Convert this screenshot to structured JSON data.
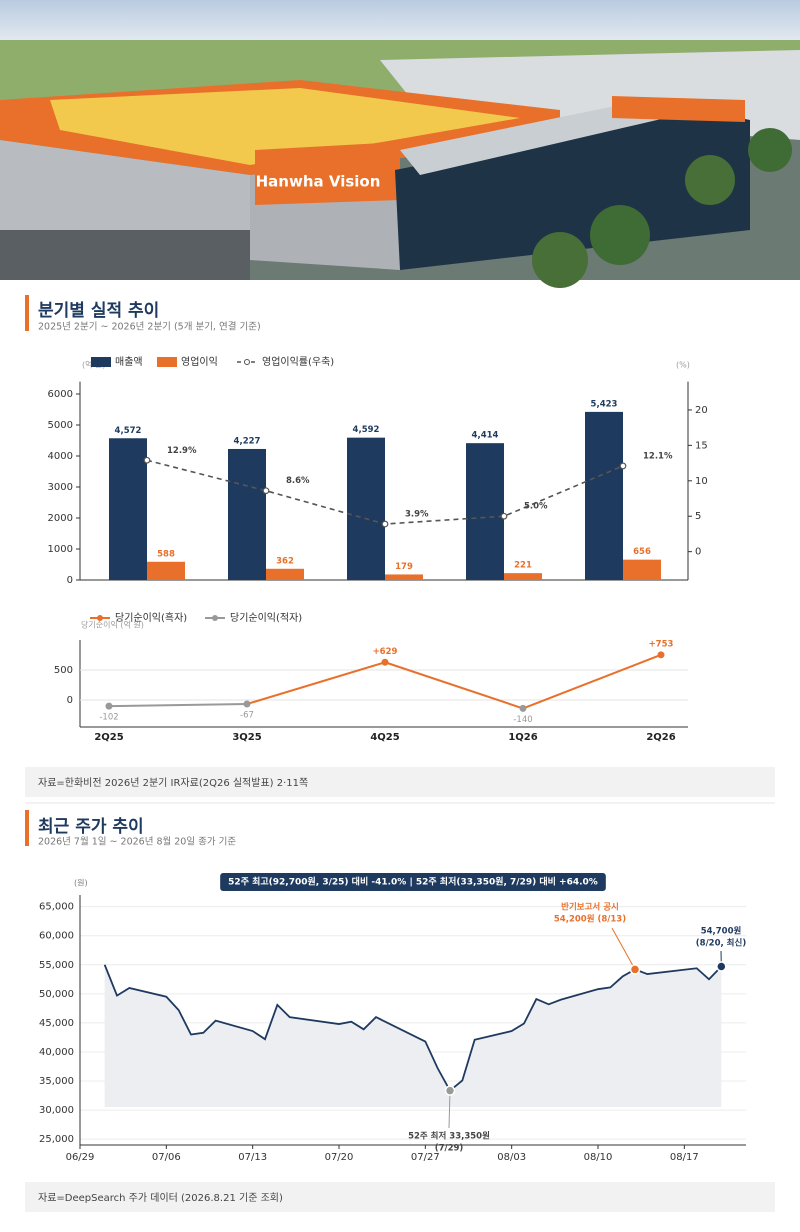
{
  "photo": {
    "sign": "Hanwha Vision"
  },
  "sections": [
    {
      "title": "분기별 실적 추이",
      "subtitle": "2025년 2분기 ~ 2026년 2분기 (5개 분기, 연결 기준)",
      "source": "자료=한화비전 2026년 2분기 IR자료(2Q26 실적발표) 2·11쪽"
    },
    {
      "title": "최근 주가 추이",
      "subtitle": "2026년 7월 1일 ~ 2026년 8월 20일 종가 기준",
      "source": "자료=DeepSearch 주가 데이터 (2026.8.21 기준 조회)"
    }
  ],
  "chart_data": [
    {
      "type": "bar",
      "y_label": "(억 원)",
      "y2_label": "(%)",
      "ylim": [
        0,
        6400
      ],
      "yticks": [
        0,
        1000,
        2000,
        3000,
        4000,
        5000,
        6000
      ],
      "y2lim": [
        -4,
        24
      ],
      "y2ticks": [
        0,
        5,
        10,
        15,
        20
      ],
      "series": [
        {
          "name": "매출액",
          "color": "#1f3a5f",
          "values": [
            4572,
            4227,
            4592,
            4414,
            5423
          ],
          "value_labels": [
            "4,572",
            "4,227",
            "4,592",
            "4,414",
            "5,423"
          ]
        },
        {
          "name": "영업이익",
          "color": "#e8702a",
          "values": [
            588,
            362,
            179,
            221,
            656
          ]
        },
        {
          "name": "영업이익률(우축)",
          "type": "line",
          "axis": "y2",
          "color": "#555555",
          "values": [
            12.9,
            8.6,
            3.9,
            5.0,
            12.1
          ],
          "value_labels": [
            "12.9%",
            "8.6%",
            "3.9%",
            "5.0%",
            "12.1%"
          ]
        }
      ]
    },
    {
      "type": "line",
      "y_label": "당기순이익 (억 원)",
      "categories": [
        "2Q25",
        "3Q25",
        "4Q25",
        "1Q26",
        "2Q26"
      ],
      "ylim": [
        -450,
        1000
      ],
      "yticks": [
        0,
        500
      ],
      "grid": true,
      "series": [
        {
          "name": "당기순이익(흑자)",
          "color": "#e8702a",
          "values": [
            null,
            null,
            629,
            null,
            753
          ],
          "value_labels": [
            null,
            null,
            "+629",
            null,
            "+753"
          ]
        },
        {
          "name": "당기순이익(적자)",
          "color": "#999999",
          "values": [
            -102,
            -67,
            null,
            -140,
            null
          ]
        }
      ]
    },
    {
      "type": "line",
      "y_label": "(원)",
      "color": "#1f3a5f",
      "grid": true,
      "banner": "52주 최고(92,700원, 3/25) 대비 -41.0%  |  52주 최저(33,350원, 7/29) 대비 +64.0%",
      "annotations": [
        {
          "lines": [
            "반기보고서 공시",
            "54,200원 (8/13)"
          ]
        },
        {
          "lines": [
            "54,700원",
            "(8/20, 최신)"
          ]
        },
        {
          "lines": [
            "52주 최저 33,350원",
            "(7/29)"
          ]
        }
      ],
      "xlim": [
        "06/29",
        "08/22"
      ],
      "xticks": [
        "06/29",
        "07/06",
        "07/13",
        "07/20",
        "07/27",
        "08/03",
        "08/10",
        "08/17"
      ],
      "ylim": [
        24000,
        67000
      ],
      "yticks": [
        {
          "value": 25000,
          "label": "25,000"
        },
        {
          "value": 30000,
          "label": "30,000"
        },
        {
          "value": 35000,
          "label": "35,000"
        },
        {
          "value": 40000,
          "label": "40,000"
        },
        {
          "value": 45000,
          "label": "45,000"
        },
        {
          "value": 50000,
          "label": "50,000"
        },
        {
          "value": 55000,
          "label": "55,000"
        },
        {
          "value": 60000,
          "label": "60,000"
        },
        {
          "value": 65000,
          "label": "65,000"
        }
      ],
      "x": [
        "07/01",
        "07/02",
        "07/03",
        "07/06",
        "07/07",
        "07/08",
        "07/09",
        "07/10",
        "07/13",
        "07/14",
        "07/15",
        "07/16",
        "07/20",
        "07/21",
        "07/22",
        "07/23",
        "07/27",
        "07/28",
        "07/29",
        "07/30",
        "07/31",
        "08/03",
        "08/04",
        "08/05",
        "08/06",
        "08/07",
        "08/10",
        "08/11",
        "08/12",
        "08/13",
        "08/14",
        "08/18",
        "08/19",
        "08/20"
      ],
      "values": [
        55000,
        49700,
        51000,
        49500,
        47200,
        43000,
        43300,
        45400,
        43600,
        42200,
        48100,
        46000,
        44800,
        45200,
        43900,
        46000,
        41800,
        37200,
        33350,
        35100,
        42100,
        43600,
        44900,
        49100,
        48200,
        49000,
        50800,
        51100,
        53000,
        54200,
        53400,
        54400,
        52500,
        54700
      ]
    }
  ]
}
